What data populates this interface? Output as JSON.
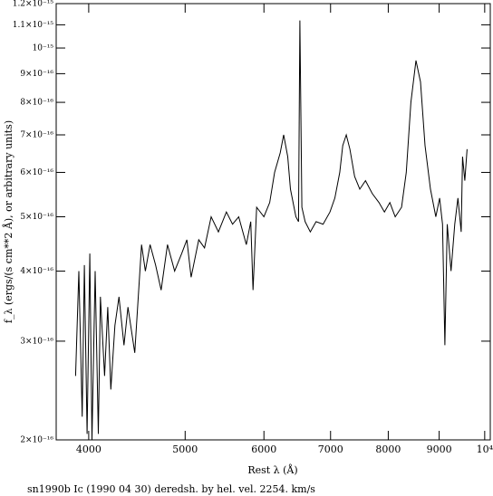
{
  "chart_data": {
    "type": "line",
    "xlabel": "Rest λ (Å)",
    "ylabel": "f_λ (ergs/(s cm**2 Å), or arbitrary units)",
    "caption": "sn1990b Ic (1990 04 30) deredsh. by hel. vel.  2254. km/s",
    "xscale": "log",
    "yscale": "log",
    "color": "#000000",
    "xlim": [
      3710,
      10130
    ],
    "ylim": [
      2e-16,
      1.2e-15
    ],
    "xticks": [
      4000,
      5000,
      6000,
      7000,
      8000,
      9000,
      {
        "value": 10000,
        "label": "10⁴"
      }
    ],
    "yticks": [
      {
        "value": 2e-16,
        "label": "2×10⁻¹⁶"
      },
      {
        "value": 3e-16,
        "label": "3×10⁻¹⁶"
      },
      {
        "value": 4e-16,
        "label": "4×10⁻¹⁶"
      },
      {
        "value": 5e-16,
        "label": "5×10⁻¹⁶"
      },
      {
        "value": 6e-16,
        "label": "6×10⁻¹⁶"
      },
      {
        "value": 7e-16,
        "label": "7×10⁻¹⁶"
      },
      {
        "value": 8e-16,
        "label": "8×10⁻¹⁶"
      },
      {
        "value": 9e-16,
        "label": "9×10⁻¹⁶"
      },
      {
        "value": 1e-15,
        "label": "10⁻¹⁵"
      },
      {
        "value": 1.1e-15,
        "label": "1.1×10⁻¹⁵"
      },
      {
        "value": 1.2e-15,
        "label": "1.2×10⁻¹⁵"
      }
    ],
    "x": [
      3880,
      3910,
      3940,
      3960,
      3985,
      4010,
      4030,
      4060,
      4090,
      4110,
      4150,
      4180,
      4210,
      4250,
      4290,
      4340,
      4380,
      4450,
      4520,
      4560,
      4610,
      4670,
      4730,
      4800,
      4880,
      4960,
      5020,
      5070,
      5160,
      5230,
      5310,
      5400,
      5500,
      5580,
      5660,
      5760,
      5820,
      5850,
      5900,
      6000,
      6080,
      6150,
      6230,
      6280,
      6340,
      6380,
      6460,
      6500,
      6520,
      6550,
      6600,
      6680,
      6770,
      6880,
      6990,
      7070,
      7150,
      7200,
      7260,
      7320,
      7400,
      7490,
      7590,
      7710,
      7830,
      7930,
      8030,
      8130,
      8250,
      8340,
      8430,
      8530,
      8620,
      8710,
      8820,
      8930,
      9010,
      9070,
      9120,
      9170,
      9250,
      9330,
      9400,
      9470,
      9500,
      9550,
      9600
    ],
    "values": [
      2.6e-16,
      4e-16,
      2.2e-16,
      4.1e-16,
      2.05e-16,
      4.3e-16,
      2e-16,
      4e-16,
      2.05e-16,
      3.6e-16,
      2.6e-16,
      3.45e-16,
      2.46e-16,
      3.2e-16,
      3.6e-16,
      2.95e-16,
      3.45e-16,
      2.86e-16,
      4.46e-16,
      4e-16,
      4.46e-16,
      4.1e-16,
      3.7e-16,
      4.46e-16,
      4e-16,
      4.3e-16,
      4.55e-16,
      3.9e-16,
      4.55e-16,
      4.4e-16,
      5e-16,
      4.7e-16,
      5.1e-16,
      4.85e-16,
      5e-16,
      4.46e-16,
      4.9e-16,
      3.7e-16,
      5.2e-16,
      5e-16,
      5.3e-16,
      6e-16,
      6.5e-16,
      7e-16,
      6.4e-16,
      5.6e-16,
      5e-16,
      4.9e-16,
      1.12e-15,
      5.2e-16,
      4.9e-16,
      4.7e-16,
      4.9e-16,
      4.85e-16,
      5.1e-16,
      5.4e-16,
      6e-16,
      6.7e-16,
      7e-16,
      6.6e-16,
      5.9e-16,
      5.6e-16,
      5.8e-16,
      5.5e-16,
      5.3e-16,
      5.1e-16,
      5.3e-16,
      5e-16,
      5.2e-16,
      6e-16,
      8e-16,
      9.5e-16,
      8.7e-16,
      6.7e-16,
      5.6e-16,
      5e-16,
      5.4e-16,
      4.85e-16,
      2.95e-16,
      4.85e-16,
      4e-16,
      4.85e-16,
      5.4e-16,
      4.7e-16,
      6.4e-16,
      5.8e-16,
      6.6e-16
    ]
  }
}
